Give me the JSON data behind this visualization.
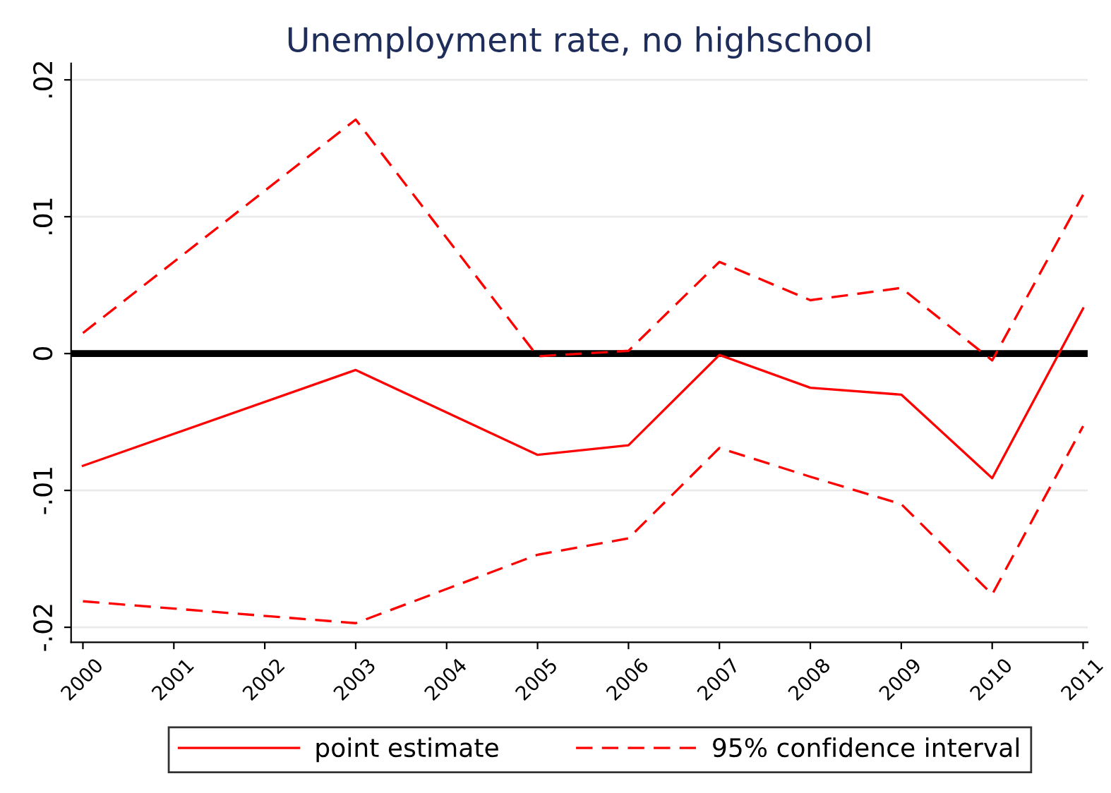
{
  "chart_data": {
    "type": "line",
    "title": "Unemployment rate, no highschool",
    "x": [
      2000,
      2003,
      2005,
      2006,
      2007,
      2008,
      2009,
      2010,
      2011
    ],
    "series": [
      {
        "name": "point estimate",
        "color": "#ff0000",
        "line_style": "solid",
        "values": [
          -0.0082,
          -0.0012,
          -0.0074,
          -0.0067,
          -0.0001,
          -0.0025,
          -0.003,
          -0.0091,
          0.0033
        ]
      },
      {
        "name": "95% confidence interval",
        "color": "#ff0000",
        "line_style": "dashed",
        "values": [
          0.0015,
          0.0171,
          -0.0002,
          0.0002,
          0.0067,
          0.0039,
          0.0048,
          -0.0005,
          0.0116
        ]
      },
      {
        "color": "#ff0000",
        "line_style": "dashed",
        "values": [
          -0.0181,
          -0.0197,
          -0.0147,
          -0.0135,
          -0.0069,
          -0.009,
          -0.011,
          -0.0176,
          -0.0053
        ]
      }
    ],
    "xlim": [
      1999.87,
      2011.05
    ],
    "xticks": [
      2000,
      2001,
      2002,
      2003,
      2004,
      2005,
      2006,
      2007,
      2008,
      2009,
      2010,
      2011
    ],
    "ylim": [
      -0.0211,
      0.0212
    ],
    "yticks": [
      {
        "value": -0.02,
        "label": "-.02"
      },
      {
        "value": -0.01,
        "label": "-.01"
      },
      {
        "value": 0,
        "label": "0"
      },
      {
        "value": 0.01,
        "label": ".01"
      },
      {
        "value": 0.02,
        "label": ".02"
      }
    ],
    "ref_lines": [
      {
        "axis": "y",
        "value": 0,
        "color": "#000000"
      }
    ],
    "grid": "y",
    "legend": "bottom"
  }
}
